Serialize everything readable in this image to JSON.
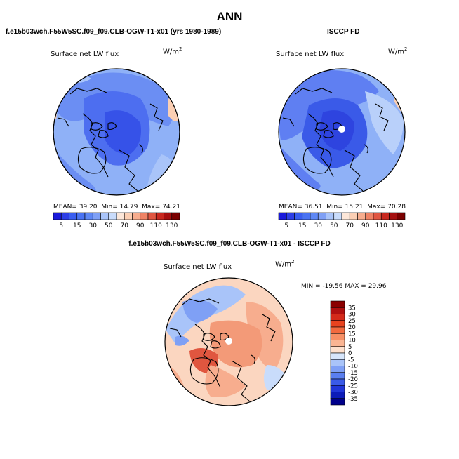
{
  "chart_data": [
    {
      "type": "heatmap",
      "projection": "north-polar-stereographic",
      "panel_title": "f.e15b03wch.F55W5SC.f09_f09.CLB-OGW-T1-x01 (yrs 1980-1989)",
      "variable": "Surface net LW flux",
      "units": "W/m²",
      "stats": {
        "mean_label": "MEAN=",
        "mean": "39.20",
        "min_label": "Min=",
        "min": "14.79",
        "max_label": "Max=",
        "max": "74.21"
      },
      "colorbar_ticks": [
        "5",
        "15",
        "30",
        "50",
        "70",
        "90",
        "110",
        "130"
      ],
      "colorbar_levels": [
        5,
        10,
        15,
        20,
        30,
        40,
        50,
        60,
        70,
        80,
        90,
        100,
        110,
        120,
        130
      ],
      "colorbar_colors": [
        "#1a1adb",
        "#2e3fe6",
        "#3a5ef0",
        "#4a73f2",
        "#5f88f4",
        "#7fa0f5",
        "#a9c4f9",
        "#c9dcfb",
        "#fce7d9",
        "#fbcfb4",
        "#f7ad8e",
        "#ef8365",
        "#e05641",
        "#c8281f",
        "#a50f0f",
        "#7a0000"
      ]
    },
    {
      "type": "heatmap",
      "projection": "north-polar-stereographic",
      "panel_title": "ISCCP FD",
      "variable": "Surface net LW flux",
      "units": "W/m²",
      "stats": {
        "mean_label": "MEAN=",
        "mean": "36.51",
        "min_label": "Min=",
        "min": "15.21",
        "max_label": "Max=",
        "max": "70.28"
      },
      "colorbar_ticks": [
        "5",
        "15",
        "30",
        "50",
        "70",
        "90",
        "110",
        "130"
      ],
      "colorbar_levels": [
        5,
        10,
        15,
        20,
        30,
        40,
        50,
        60,
        70,
        80,
        90,
        100,
        110,
        120,
        130
      ],
      "colorbar_colors": [
        "#1a1adb",
        "#2e3fe6",
        "#3a5ef0",
        "#4a73f2",
        "#5f88f4",
        "#7fa0f5",
        "#a9c4f9",
        "#c9dcfb",
        "#fce7d9",
        "#fbcfb4",
        "#f7ad8e",
        "#ef8365",
        "#e05641",
        "#c8281f",
        "#a50f0f",
        "#7a0000"
      ]
    },
    {
      "type": "heatmap",
      "projection": "north-polar-stereographic",
      "panel_title": "f.e15b03wch.F55W5SC.f09_f09.CLB-OGW-T1-x01 - ISCCP FD",
      "variable": "Surface net LW flux",
      "units": "W/m²",
      "stats": {
        "min_label": "MIN =",
        "min": "-19.56",
        "max_label": "MAX =",
        "max": "29.96"
      },
      "colorbar_ticks": [
        "35",
        "30",
        "25",
        "20",
        "15",
        "10",
        "5",
        "0",
        "-5",
        "-10",
        "-15",
        "-20",
        "-25",
        "-30",
        "-35"
      ],
      "colorbar_colors": [
        "#8b0000",
        "#b01010",
        "#d42a1a",
        "#e8431f",
        "#f26a3f",
        "#f79066",
        "#fab593",
        "#fde0cd",
        "#d7e6fb",
        "#a9c4f9",
        "#7fa0f5",
        "#5a7ff0",
        "#3a5ae8",
        "#2035d8",
        "#0c1bb8",
        "#00008b"
      ]
    }
  ],
  "page": {
    "title": "ANN",
    "units_label": "W/m",
    "units_sup": "2"
  }
}
